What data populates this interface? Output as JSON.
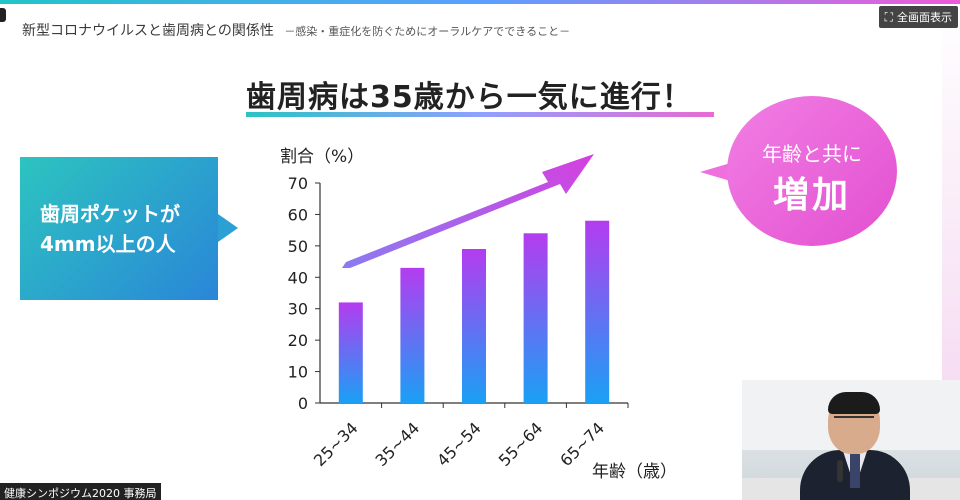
{
  "window": {
    "fullscreen_label": "全画面表示",
    "fullscreen_icon": "expand-icon"
  },
  "slide": {
    "header_main": "新型コロナウイルスと歯周病との関係性",
    "header_sub": "－感染・重症化を防ぐためにオーラルケアでできること－",
    "main_title": "歯周病は35歳から一気に進行！",
    "left_callout_line1": "歯周ポケットが",
    "left_callout_line2": "4mm以上の人",
    "bubble_line1": "年齢と共に",
    "bubble_line2": "増加"
  },
  "footer": {
    "label": "健康シンポジウム2020 事務局"
  },
  "colors": {
    "bar_top": "#b43cf0",
    "bar_bottom": "#1aa0f5",
    "arrow_start": "#8a7cf0",
    "arrow_end": "#d63fe0",
    "axis": "#333333"
  },
  "chart_data": {
    "type": "bar",
    "categories": [
      "25~34",
      "35~44",
      "45~54",
      "55~64",
      "65~74"
    ],
    "values": [
      32,
      43,
      49,
      54,
      58
    ],
    "ylabel": "割合（%）",
    "xlabel": "年齢（歳）",
    "ylim": [
      0,
      70
    ],
    "yticks": [
      0,
      10,
      20,
      30,
      40,
      50,
      60,
      70
    ],
    "grid": false,
    "annotation": "upward trend arrow"
  }
}
